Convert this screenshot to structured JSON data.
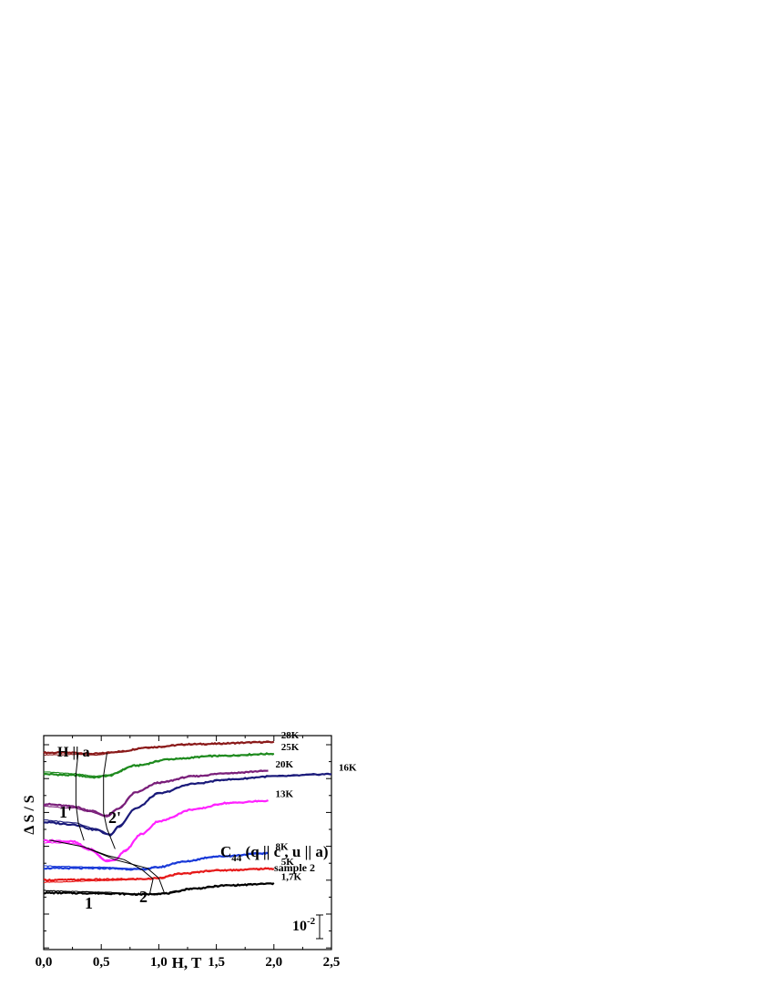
{
  "chart_data": {
    "type": "line",
    "title": "",
    "xlabel": "H, T",
    "ylabel": "Δ S / S",
    "xlim": [
      0,
      2.5
    ],
    "xticks": [
      {
        "v": 0.0,
        "label": "0,0"
      },
      {
        "v": 0.5,
        "label": "0,5"
      },
      {
        "v": 1.0,
        "label": "1,0"
      },
      {
        "v": 1.5,
        "label": "1,5"
      },
      {
        "v": 2.0,
        "label": "2,0"
      },
      {
        "v": 2.5,
        "label": "2,5"
      }
    ],
    "ylim": [
      0,
      1
    ],
    "grid": false,
    "legend": "none",
    "annotations": {
      "field_direction": "H || a",
      "mode_prefix": "C",
      "mode_subscript": "44",
      "mode_suffix": " (q || c , u || a)",
      "sample": "sample 2",
      "scale_base": "10",
      "scale_exp": "-2",
      "curve_1": "1",
      "curve_2": "2",
      "curve_1p": "1'",
      "curve_2p": "2'"
    },
    "series": [
      {
        "name": "28K",
        "color": "#8b1a1a",
        "x_end": 2.0,
        "points": [
          [
            0.0,
            0.92
          ],
          [
            0.25,
            0.92
          ],
          [
            0.45,
            0.915
          ],
          [
            0.65,
            0.925
          ],
          [
            0.9,
            0.945
          ],
          [
            1.3,
            0.96
          ],
          [
            2.0,
            0.97
          ]
        ]
      },
      {
        "name": "25K",
        "color": "#1e8a1e",
        "x_end": 2.0,
        "points": [
          [
            0.0,
            0.82
          ],
          [
            0.25,
            0.815
          ],
          [
            0.45,
            0.805
          ],
          [
            0.55,
            0.812
          ],
          [
            0.8,
            0.86
          ],
          [
            1.1,
            0.89
          ],
          [
            1.5,
            0.905
          ],
          [
            2.0,
            0.915
          ]
        ]
      },
      {
        "name": "20K",
        "color": "#7a1f7a",
        "x_end": 1.95,
        "points": [
          [
            0.0,
            0.68
          ],
          [
            0.25,
            0.67
          ],
          [
            0.4,
            0.65
          ],
          [
            0.55,
            0.625
          ],
          [
            0.65,
            0.66
          ],
          [
            0.8,
            0.735
          ],
          [
            1.0,
            0.78
          ],
          [
            1.3,
            0.81
          ],
          [
            1.6,
            0.825
          ],
          [
            1.95,
            0.835
          ]
        ]
      },
      {
        "name": "16K",
        "color": "#1a1a7a",
        "x_end": 2.5,
        "points": [
          [
            0.0,
            0.595
          ],
          [
            0.25,
            0.585
          ],
          [
            0.45,
            0.56
          ],
          [
            0.58,
            0.535
          ],
          [
            0.65,
            0.575
          ],
          [
            0.8,
            0.66
          ],
          [
            1.0,
            0.73
          ],
          [
            1.3,
            0.775
          ],
          [
            1.6,
            0.795
          ],
          [
            2.0,
            0.81
          ],
          [
            2.5,
            0.82
          ]
        ]
      },
      {
        "name": "13K",
        "color": "#ff22ff",
        "x_end": 1.95,
        "points": [
          [
            0.0,
            0.51
          ],
          [
            0.25,
            0.505
          ],
          [
            0.4,
            0.47
          ],
          [
            0.55,
            0.415
          ],
          [
            0.62,
            0.42
          ],
          [
            0.7,
            0.46
          ],
          [
            0.85,
            0.54
          ],
          [
            1.0,
            0.6
          ],
          [
            1.3,
            0.655
          ],
          [
            1.6,
            0.685
          ],
          [
            1.95,
            0.695
          ]
        ]
      },
      {
        "name": "8K",
        "color": "#1a3ad8",
        "x_end": 1.95,
        "points": [
          [
            0.0,
            0.38
          ],
          [
            0.5,
            0.38
          ],
          [
            0.85,
            0.375
          ],
          [
            1.0,
            0.385
          ],
          [
            1.2,
            0.41
          ],
          [
            1.5,
            0.435
          ],
          [
            1.95,
            0.45
          ]
        ]
      },
      {
        "name": "5K",
        "color": "#e61a1a",
        "x_end": 2.0,
        "points": [
          [
            0.0,
            0.325
          ],
          [
            0.5,
            0.327
          ],
          [
            0.9,
            0.33
          ],
          [
            1.0,
            0.335
          ],
          [
            1.2,
            0.355
          ],
          [
            1.5,
            0.37
          ],
          [
            2.0,
            0.378
          ]
        ]
      },
      {
        "name": "1,7K",
        "color": "#000000",
        "x_end": 2.0,
        "points": [
          [
            0.0,
            0.265
          ],
          [
            0.5,
            0.263
          ],
          [
            0.85,
            0.258
          ],
          [
            1.05,
            0.262
          ],
          [
            1.3,
            0.285
          ],
          [
            1.6,
            0.3
          ],
          [
            2.0,
            0.308
          ]
        ]
      }
    ],
    "phase_lines": {
      "line_1": [
        [
          0.05,
          0.512
        ],
        [
          0.35,
          0.48
        ],
        [
          0.55,
          0.44
        ],
        [
          0.7,
          0.42
        ],
        [
          0.85,
          0.375
        ],
        [
          0.95,
          0.33
        ],
        [
          0.92,
          0.258
        ]
      ],
      "line_2": [
        [
          0.35,
          0.48
        ],
        [
          0.62,
          0.42
        ],
        [
          0.9,
          0.38
        ],
        [
          1.0,
          0.334
        ],
        [
          1.05,
          0.262
        ]
      ],
      "line_1p": [
        [
          0.3,
          0.92
        ],
        [
          0.28,
          0.82
        ],
        [
          0.28,
          0.68
        ],
        [
          0.3,
          0.595
        ],
        [
          0.35,
          0.51
        ]
      ],
      "line_2p": [
        [
          0.55,
          0.92
        ],
        [
          0.52,
          0.812
        ],
        [
          0.52,
          0.64
        ],
        [
          0.55,
          0.565
        ],
        [
          0.62,
          0.47
        ]
      ]
    }
  }
}
